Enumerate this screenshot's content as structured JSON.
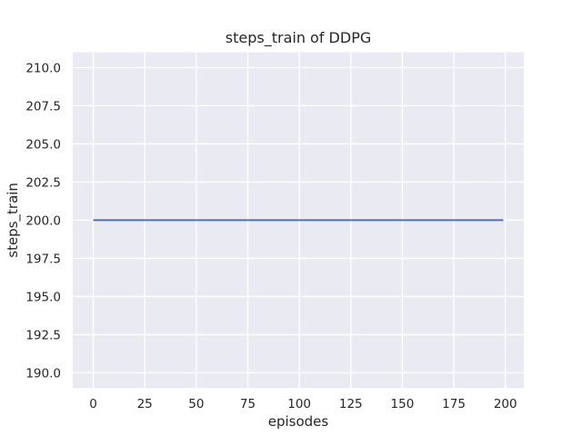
{
  "chart_data": {
    "type": "line",
    "title": "steps_train of DDPG",
    "xlabel": "episodes",
    "ylabel": "steps_train",
    "x_ticks": [
      0,
      25,
      50,
      75,
      100,
      125,
      150,
      175,
      200
    ],
    "x_tick_labels": [
      "0",
      "25",
      "50",
      "75",
      "100",
      "125",
      "150",
      "175",
      "200"
    ],
    "y_ticks": [
      190,
      192.5,
      195,
      197.5,
      200,
      202.5,
      205,
      207.5,
      210
    ],
    "y_tick_labels": [
      "190.0",
      "192.5",
      "195.0",
      "197.5",
      "200.0",
      "202.5",
      "205.0",
      "207.5",
      "210.0"
    ],
    "xlim": [
      -9.95,
      208.95
    ],
    "ylim": [
      189,
      211
    ],
    "grid": true,
    "legend": null,
    "series": [
      {
        "name": "steps_train",
        "color": "#4C72B0",
        "description": "constant line: steps_train = 200 for all episodes 0 through 199",
        "constant_value": 200,
        "x_range": [
          0,
          199
        ],
        "points": [
          [
            0,
            200
          ],
          [
            199,
            200
          ]
        ]
      }
    ],
    "style": {
      "figure_background": "#FFFFFF",
      "axes_background": "#EAEAF2",
      "grid_color": "#FFFFFF",
      "text_color": "#262626",
      "line_width": 2,
      "grid_line_width": 1.4
    }
  }
}
